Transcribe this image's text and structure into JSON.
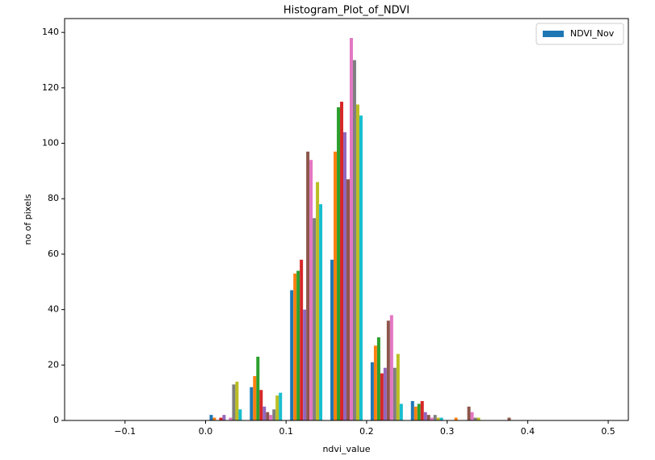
{
  "chart_data": {
    "type": "histogram",
    "title": "Histogram_Plot_of_NDVI",
    "x_label": "ndvi_value",
    "y_label": "no of pixels",
    "bins": [
      -0.15,
      -0.1,
      -0.05,
      0,
      0.05,
      0.1,
      0.15,
      0.2,
      0.25,
      0.3,
      0.35,
      0.4,
      0.45,
      0.5
    ],
    "series": [
      {
        "name": "NDVI_Nov",
        "color": "#1f77b4",
        "values": [
          0,
          0,
          0,
          2,
          12,
          47,
          58,
          21,
          7,
          0,
          0,
          0,
          0
        ]
      },
      {
        "color": "#ff7f0e",
        "values": [
          0,
          0,
          0,
          1,
          16,
          53,
          97,
          27,
          5,
          1,
          0,
          0,
          0
        ]
      },
      {
        "color": "#2ca02c",
        "values": [
          0,
          0,
          0,
          0,
          23,
          54,
          113,
          30,
          6,
          0,
          0,
          0,
          0
        ]
      },
      {
        "color": "#d62728",
        "values": [
          0,
          0,
          0,
          1,
          11,
          58,
          115,
          17,
          7,
          0,
          0,
          0,
          0
        ]
      },
      {
        "color": "#9467bd",
        "values": [
          0,
          0,
          0,
          2,
          5,
          40,
          104,
          19,
          3,
          0,
          0,
          0,
          0
        ]
      },
      {
        "color": "#8c564b",
        "values": [
          0,
          0,
          0,
          0,
          3,
          97,
          87,
          36,
          2,
          5,
          1,
          0,
          0
        ]
      },
      {
        "color": "#e377c2",
        "values": [
          0,
          0,
          0,
          1,
          2,
          94,
          138,
          38,
          1,
          3,
          0,
          0,
          0
        ]
      },
      {
        "color": "#7f7f7f",
        "values": [
          0,
          0,
          0,
          13,
          4,
          73,
          130,
          19,
          2,
          1,
          0,
          0,
          0
        ]
      },
      {
        "color": "#bcbd22",
        "values": [
          0,
          0,
          0,
          14,
          9,
          86,
          114,
          24,
          1,
          1,
          0,
          0,
          0
        ]
      },
      {
        "color": "#17becf",
        "values": [
          0,
          0,
          0,
          4,
          10,
          78,
          110,
          6,
          1,
          0,
          0,
          0,
          0
        ]
      }
    ],
    "xlim": [
      -0.175,
      0.525
    ],
    "xticks": [
      {
        "value": -0.1,
        "label": "−0.1"
      },
      {
        "value": 0,
        "label": "0.0"
      },
      0.1,
      0.2,
      0.3,
      0.4,
      0.5
    ],
    "ylim": [
      0,
      145
    ],
    "yticks": [
      0,
      20,
      40,
      60,
      80,
      100,
      120,
      140
    ],
    "legend": "upper right"
  }
}
